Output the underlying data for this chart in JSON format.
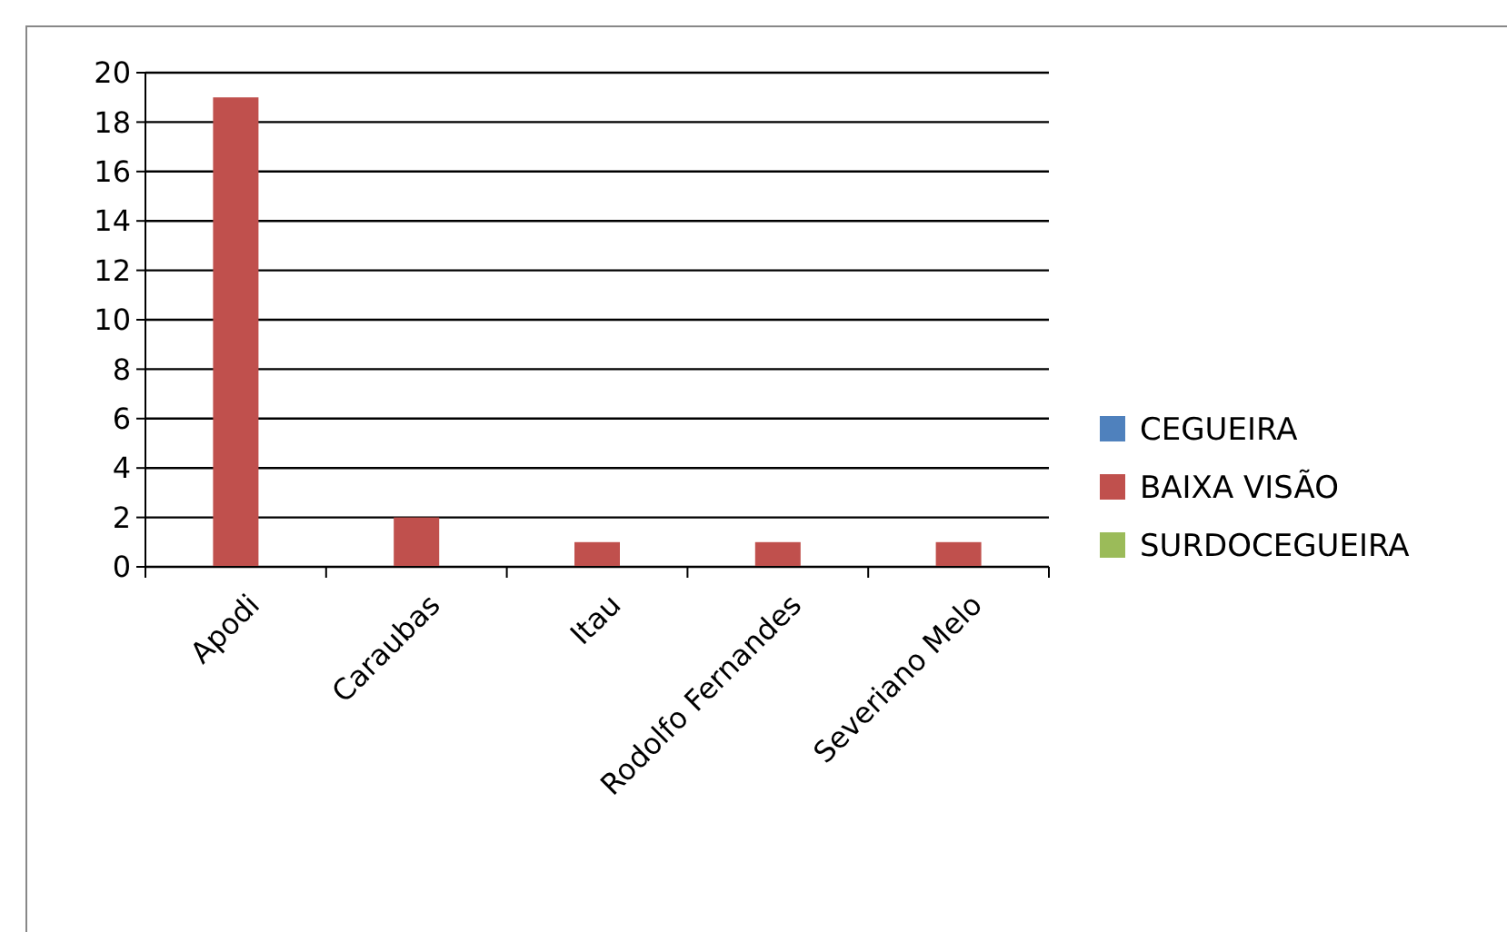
{
  "chart_data": {
    "type": "bar",
    "categories": [
      "Apodi",
      "Caraubas",
      "Itau",
      "Rodolfo Fernandes",
      "Severiano Melo"
    ],
    "series": [
      {
        "name": "CEGUEIRA",
        "color": "#4f81bd",
        "values": [
          0,
          0,
          0,
          0,
          0
        ]
      },
      {
        "name": "BAIXA VISÃO",
        "color": "#c0504d",
        "values": [
          19,
          2,
          1,
          1,
          1
        ]
      },
      {
        "name": "SURDOCEGUEIRA",
        "color": "#9bbb59",
        "values": [
          0,
          0,
          0,
          0,
          0
        ]
      }
    ],
    "ylim": [
      0,
      20
    ],
    "yticks": [
      0,
      2,
      4,
      6,
      8,
      10,
      12,
      14,
      16,
      18,
      20
    ],
    "grid": "y",
    "legend": "right"
  }
}
